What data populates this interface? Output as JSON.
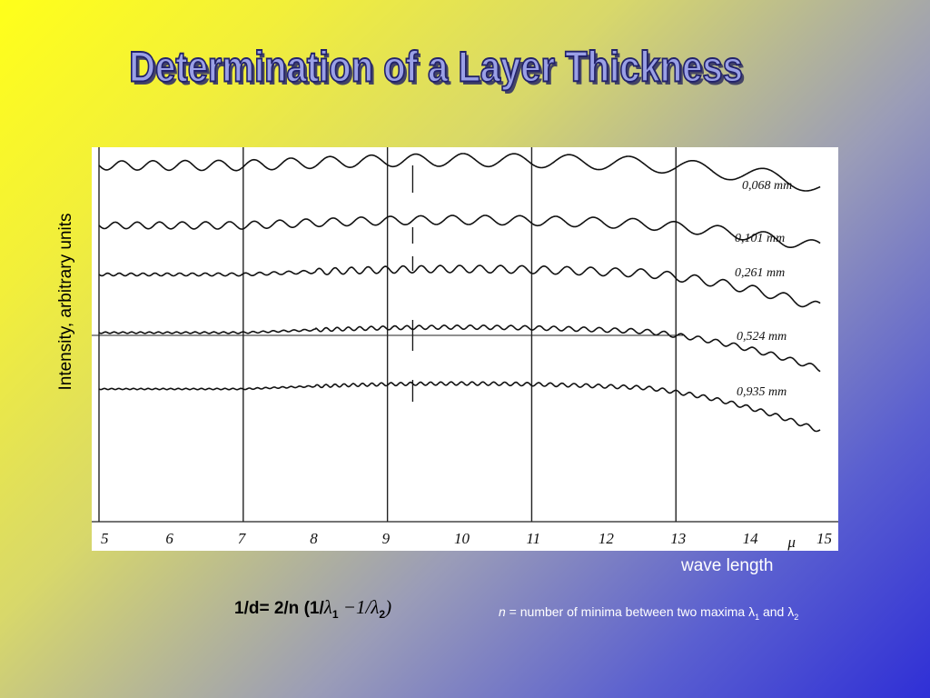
{
  "title": "Determination of a Layer Thickness",
  "ylabel": "Intensity, arbitrary units",
  "xlabel": "wave length",
  "formula": {
    "lhs": "1/d= 2/n",
    "rhs_open": "(1/",
    "lambda": "λ",
    "sub1": "1",
    "minus": " −1/",
    "sub2": "2",
    "rhs_close": ")"
  },
  "note": {
    "n": "n",
    "text": " = number of minima between two maxima ",
    "lambda": "λ",
    "sub1": "1",
    "and": " and ",
    "sub2": "2"
  },
  "chart_data": {
    "type": "line",
    "x_unit": "μ",
    "x_ticks": [
      5,
      6,
      7,
      8,
      9,
      10,
      11,
      12,
      13,
      14,
      15
    ],
    "xlim": [
      5,
      15.1
    ],
    "series": [
      {
        "name": "0,068 mm"
      },
      {
        "name": "0,101 mm"
      },
      {
        "name": "0,261 mm"
      },
      {
        "name": "0,524 mm"
      },
      {
        "name": "0,935 mm"
      }
    ]
  }
}
